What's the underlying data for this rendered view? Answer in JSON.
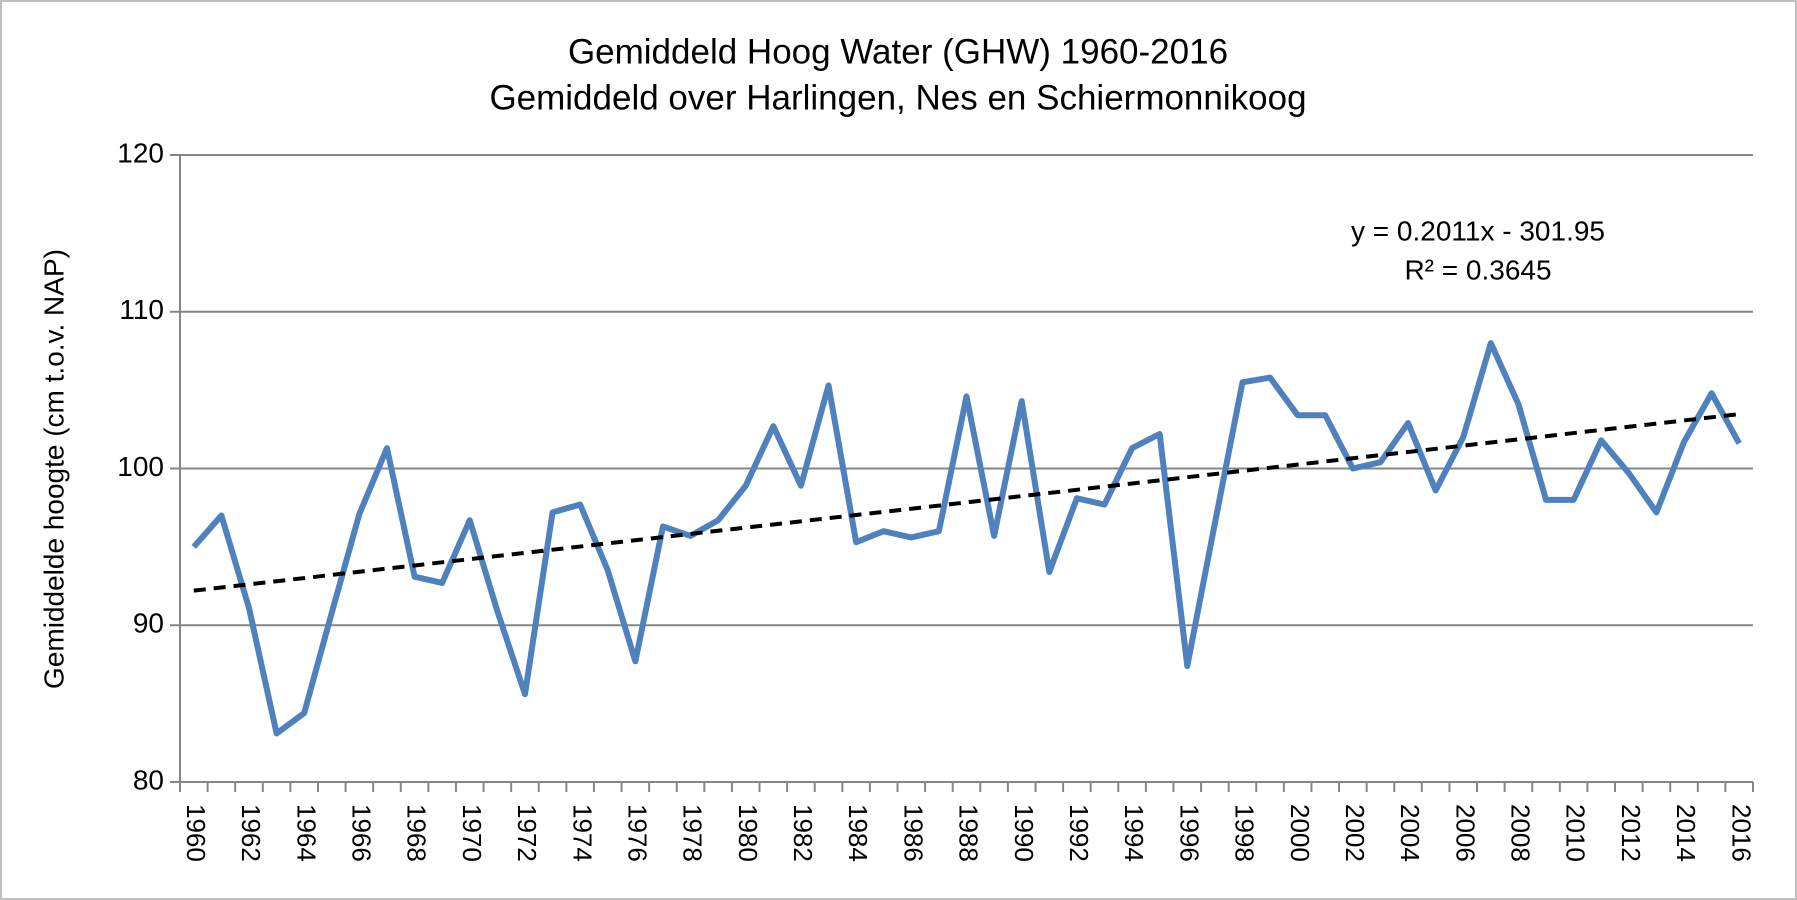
{
  "chart_data": {
    "type": "line",
    "title": "Gemiddeld Hoog Water (GHW) 1960-2016",
    "subtitle": "Gemiddeld over Harlingen,  Nes en Schiermonnikoog",
    "y_label": "Gemiddelde  hoogte (cm t.o.v. NAP)",
    "x": [
      1960,
      1961,
      1962,
      1963,
      1964,
      1965,
      1966,
      1967,
      1968,
      1969,
      1970,
      1971,
      1972,
      1973,
      1974,
      1975,
      1976,
      1977,
      1978,
      1979,
      1980,
      1981,
      1982,
      1983,
      1984,
      1985,
      1986,
      1987,
      1988,
      1989,
      1990,
      1991,
      1992,
      1993,
      1994,
      1995,
      1996,
      1997,
      1998,
      1999,
      2000,
      2001,
      2002,
      2003,
      2004,
      2005,
      2006,
      2007,
      2008,
      2009,
      2010,
      2011,
      2012,
      2013,
      2014,
      2015,
      2016
    ],
    "series": [
      {
        "name": "GHW",
        "color": "#4f81bd",
        "values": [
          95.0,
          97.0,
          91.1,
          83.1,
          84.4,
          90.8,
          97.1,
          101.3,
          93.1,
          92.7,
          96.7,
          90.9,
          85.6,
          97.2,
          97.7,
          93.5,
          87.7,
          96.3,
          95.7,
          96.7,
          98.9,
          102.7,
          98.9,
          105.3,
          95.3,
          96.0,
          95.6,
          96.0,
          104.6,
          95.7,
          104.3,
          93.4,
          98.1,
          97.7,
          101.3,
          102.2,
          87.4,
          96.5,
          105.5,
          105.8,
          103.4,
          103.4,
          100.0,
          100.4,
          102.9,
          98.6,
          102.0,
          108.0,
          104.1,
          98.0,
          98.0,
          101.8,
          99.7,
          97.2,
          101.7,
          104.8,
          101.6
        ]
      }
    ],
    "trendline": {
      "equation": "y = 0.2011x  - 301.95",
      "r_squared_label": "R² = 0.3645",
      "slope": 0.2011,
      "intercept": -301.95,
      "color": "#000000"
    },
    "xlim": [
      1959.5,
      2016.5
    ],
    "xticks": [
      1960,
      1962,
      1964,
      1966,
      1968,
      1970,
      1972,
      1974,
      1976,
      1978,
      1980,
      1982,
      1984,
      1986,
      1988,
      1990,
      1992,
      1994,
      1996,
      1998,
      2000,
      2002,
      2004,
      2006,
      2008,
      2010,
      2012,
      2014,
      2016
    ],
    "ylim": [
      80,
      120
    ],
    "yticks": [
      80,
      90,
      100,
      110,
      120
    ],
    "grid": true
  }
}
